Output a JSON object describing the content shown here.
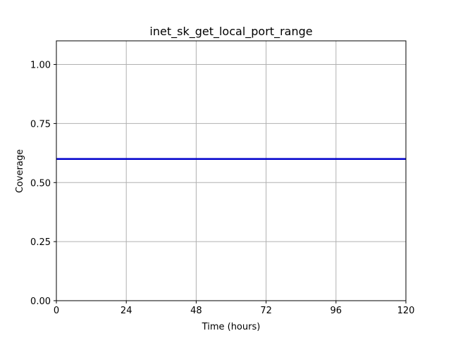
{
  "chart_data": {
    "type": "line",
    "title": "inet_sk_get_local_port_range",
    "xlabel": "Time (hours)",
    "ylabel": "Coverage",
    "xlim": [
      0,
      120
    ],
    "ylim": [
      0,
      1.1
    ],
    "xticks": [
      0,
      24,
      48,
      72,
      96,
      120
    ],
    "xtick_labels": [
      "0",
      "24",
      "48",
      "72",
      "96",
      "120"
    ],
    "yticks": [
      0,
      0.25,
      0.5,
      0.75,
      1.0
    ],
    "ytick_labels": [
      "0.00",
      "0.25",
      "0.50",
      "0.75",
      "1.00"
    ],
    "grid": true,
    "series": [
      {
        "x": [
          0,
          120
        ],
        "y": [
          0.6,
          0.6
        ],
        "color": "#0000cc"
      }
    ]
  }
}
